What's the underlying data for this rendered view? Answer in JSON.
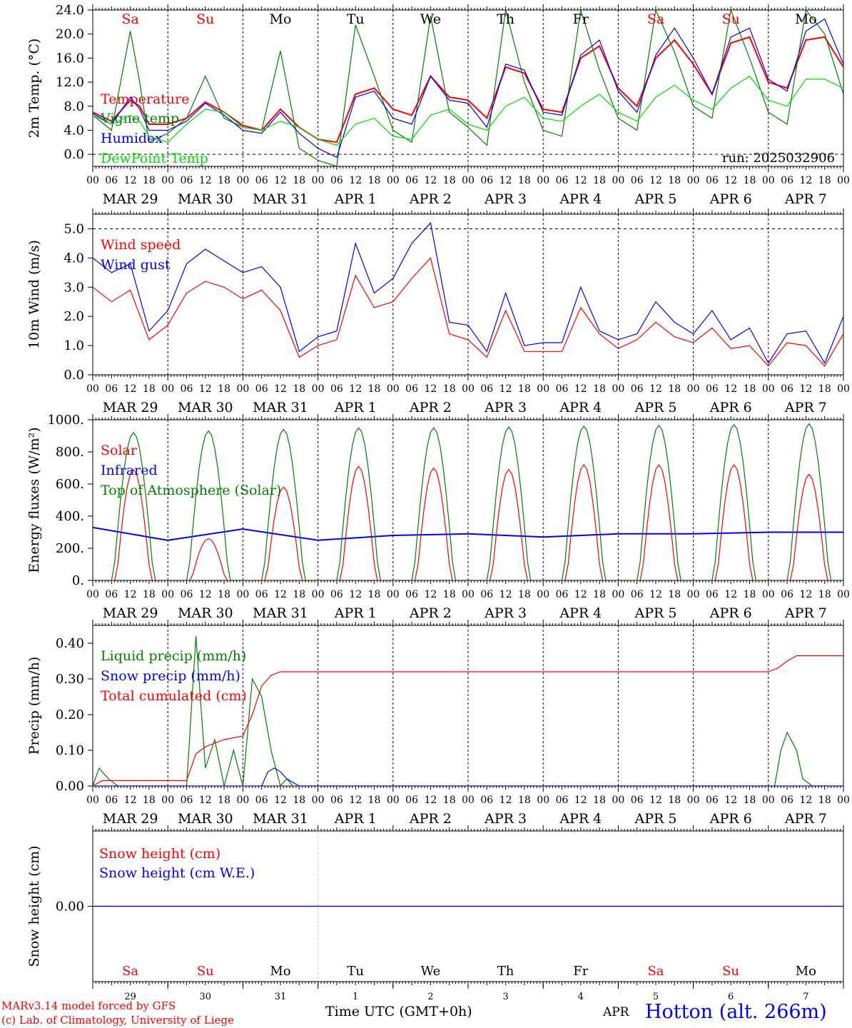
{
  "days": [
    "MAR 29",
    "MAR 30",
    "MAR 31",
    "APR  1",
    "APR  2",
    "APR  3",
    "APR  4",
    "APR  5",
    "APR  6",
    "APR  7"
  ],
  "weekdays": [
    "Sa",
    "Su",
    "Mo",
    "Tu",
    "We",
    "Th",
    "Fr",
    "Sa",
    "Su",
    "Mo"
  ],
  "weekday_colors": [
    "#ff0000",
    "#ff0000",
    "#000000",
    "#000000",
    "#000000",
    "#000000",
    "#000000",
    "#ff0000",
    "#ff0000",
    "#000000"
  ],
  "day_numbers": [
    "29",
    "30",
    "31",
    "1",
    "2",
    "3",
    "4",
    "5",
    "6",
    "7"
  ],
  "hour_ticks": [
    "00",
    "06",
    "12",
    "18"
  ],
  "last_hour_tick": "00",
  "footer": {
    "model": "MARv3.14 model forced by GFS",
    "copyright": "(c) Lab. of Climatology, University of Liege",
    "time_label": "Time UTC (GMT+0h)",
    "month": "APR",
    "station": "Hotton (alt. 266m)"
  },
  "colors": {
    "red": "#ff0000",
    "blue": "#0000ff",
    "green": "#008000",
    "lightgreen": "#00dd00"
  },
  "chart_data": [
    {
      "type": "line",
      "ylabel": "2m Temp. (°C)",
      "ylim": [
        -2,
        24
      ],
      "yticks": [
        "0.0",
        "4.0",
        "8.0",
        "12.0",
        "16.0",
        "20.0",
        "24.0"
      ],
      "ytick_values": [
        0,
        4,
        8,
        12,
        16,
        20,
        24
      ],
      "dashed_y": 0,
      "run_label": "run: 2025032906",
      "x_unit": "hours since 2025-03-29 00 UTC",
      "series": [
        {
          "name": "Temperature",
          "color": "#ff0000",
          "x": [
            0,
            6,
            12,
            15,
            18,
            24,
            30,
            36,
            42,
            48,
            54,
            60,
            66,
            72,
            78,
            84,
            90,
            96,
            102,
            108,
            114,
            120,
            126,
            132,
            138,
            144,
            150,
            156,
            162,
            168,
            174,
            180,
            186,
            192,
            198,
            204,
            210,
            216,
            222,
            228,
            234,
            240
          ],
          "y": [
            7.0,
            5.5,
            9.0,
            8.0,
            5.0,
            5.0,
            6.0,
            8.7,
            7.0,
            4.8,
            4.0,
            7.5,
            4.5,
            2.5,
            2.0,
            10.0,
            11.0,
            7.5,
            6.5,
            13.0,
            9.5,
            9.0,
            6.0,
            14.5,
            13.5,
            7.5,
            7.0,
            16.0,
            18.0,
            11.0,
            8.0,
            16.0,
            19.0,
            15.0,
            10.0,
            18.5,
            19.5,
            12.0,
            11.0,
            19.0,
            19.5,
            14.5
          ]
        },
        {
          "name": "Vigne temp",
          "color": "#008000",
          "x": [
            0,
            6,
            12,
            15,
            18,
            24,
            30,
            36,
            42,
            48,
            54,
            60,
            66,
            72,
            78,
            84,
            90,
            96,
            102,
            108,
            114,
            120,
            126,
            132,
            138,
            144,
            150,
            156,
            162,
            168,
            174,
            180,
            186,
            192,
            198,
            204,
            210,
            216,
            222,
            228,
            234,
            240
          ],
          "y": [
            6.5,
            4.0,
            20.5,
            12.0,
            2.0,
            3.5,
            6.0,
            13.0,
            6.0,
            4.5,
            4.0,
            17.2,
            1.0,
            -1.0,
            -2.0,
            21.5,
            13.0,
            4.0,
            2.0,
            23.0,
            7.0,
            4.5,
            1.5,
            24.0,
            12.0,
            4.0,
            3.0,
            24.5,
            14.0,
            6.0,
            4.0,
            25.0,
            17.0,
            8.0,
            6.0,
            25.5,
            16.0,
            7.0,
            5.0,
            25.5,
            20.0,
            10.0
          ]
        },
        {
          "name": "Humidex",
          "color": "#0000ff",
          "x": [
            0,
            6,
            12,
            15,
            18,
            24,
            30,
            36,
            42,
            48,
            54,
            60,
            66,
            72,
            78,
            84,
            90,
            96,
            102,
            108,
            114,
            120,
            126,
            132,
            138,
            144,
            150,
            156,
            162,
            168,
            174,
            180,
            186,
            192,
            198,
            204,
            210,
            216,
            222,
            228,
            234,
            240
          ],
          "y": [
            6.8,
            5.0,
            9.5,
            7.5,
            4.0,
            4.0,
            5.5,
            8.5,
            6.5,
            4.0,
            3.5,
            7.0,
            3.5,
            1.0,
            -0.5,
            9.5,
            10.5,
            6.0,
            5.0,
            13.0,
            9.0,
            8.5,
            4.5,
            15.0,
            14.0,
            7.0,
            6.5,
            16.5,
            19.0,
            10.5,
            7.0,
            16.5,
            21.0,
            16.0,
            10.0,
            19.5,
            21.0,
            12.5,
            10.5,
            20.5,
            22.5,
            15.0
          ]
        },
        {
          "name": "DewPoint Temp",
          "color": "#00dd00",
          "x": [
            0,
            6,
            12,
            15,
            18,
            24,
            30,
            36,
            42,
            48,
            54,
            60,
            66,
            72,
            78,
            84,
            90,
            96,
            102,
            108,
            114,
            120,
            126,
            132,
            138,
            144,
            150,
            156,
            162,
            168,
            174,
            180,
            186,
            192,
            198,
            204,
            210,
            216,
            222,
            228,
            234,
            240
          ],
          "y": [
            6.5,
            5.0,
            6.5,
            5.5,
            3.0,
            2.0,
            5.0,
            7.5,
            7.0,
            4.5,
            4.0,
            5.5,
            4.5,
            2.5,
            1.5,
            5.0,
            6.0,
            3.0,
            2.5,
            6.5,
            7.5,
            5.0,
            4.0,
            8.0,
            9.5,
            6.0,
            5.5,
            8.0,
            10.0,
            7.0,
            5.5,
            9.5,
            11.5,
            9.0,
            7.5,
            11.0,
            13.0,
            9.0,
            8.0,
            12.5,
            12.5,
            11.0
          ]
        }
      ]
    },
    {
      "type": "line",
      "ylabel": "10m Wind (m/s)",
      "ylim": [
        0,
        5.5
      ],
      "yticks": [
        "0.0",
        "1.0",
        "2.0",
        "3.0",
        "4.0",
        "5.0"
      ],
      "ytick_values": [
        0,
        1,
        2,
        3,
        4,
        5
      ],
      "dashed_y": 5,
      "series": [
        {
          "name": "Wind speed",
          "color": "#ff0000",
          "x": [
            0,
            6,
            12,
            18,
            24,
            30,
            36,
            42,
            48,
            54,
            60,
            66,
            72,
            78,
            84,
            90,
            96,
            102,
            108,
            114,
            120,
            126,
            132,
            138,
            144,
            150,
            156,
            162,
            168,
            174,
            180,
            186,
            192,
            198,
            204,
            210,
            216,
            222,
            228,
            234,
            240
          ],
          "y": [
            3.0,
            2.5,
            2.9,
            1.2,
            1.7,
            2.8,
            3.2,
            3.0,
            2.6,
            2.9,
            2.2,
            0.6,
            1.0,
            1.2,
            3.4,
            2.3,
            2.5,
            3.3,
            4.0,
            1.4,
            1.2,
            0.6,
            2.2,
            0.8,
            0.8,
            0.8,
            2.3,
            1.4,
            0.9,
            1.2,
            1.8,
            1.3,
            1.1,
            1.6,
            0.9,
            1.0,
            0.3,
            1.1,
            1.0,
            0.3,
            1.4
          ]
        },
        {
          "name": "Wind gust",
          "color": "#0000ff",
          "x": [
            0,
            6,
            12,
            18,
            24,
            30,
            36,
            42,
            48,
            54,
            60,
            66,
            72,
            78,
            84,
            90,
            96,
            102,
            108,
            114,
            120,
            126,
            132,
            138,
            144,
            150,
            156,
            162,
            168,
            174,
            180,
            186,
            192,
            198,
            204,
            210,
            216,
            222,
            228,
            234,
            240
          ],
          "y": [
            4.0,
            3.5,
            3.8,
            1.5,
            2.2,
            3.8,
            4.3,
            3.9,
            3.5,
            3.7,
            3.0,
            0.8,
            1.3,
            1.5,
            4.5,
            2.8,
            3.3,
            4.5,
            5.2,
            1.8,
            1.7,
            0.8,
            2.8,
            1.0,
            1.1,
            1.1,
            3.0,
            1.5,
            1.2,
            1.4,
            2.5,
            1.8,
            1.4,
            2.2,
            1.2,
            1.6,
            0.4,
            1.4,
            1.5,
            0.4,
            2.0
          ]
        }
      ]
    },
    {
      "type": "line",
      "ylabel": "Energy fluxes (W/m²)",
      "ylim": [
        0,
        1000
      ],
      "yticks": [
        "0.",
        "200.",
        "400.",
        "600.",
        "800.",
        "1000."
      ],
      "ytick_values": [
        0,
        200,
        400,
        600,
        800,
        1000
      ],
      "series": [
        {
          "name": "Solar",
          "color": "#ff0000",
          "peak_hours": [
            13,
            13,
            13,
            13,
            13,
            13,
            13,
            13,
            13,
            13
          ],
          "peaks": [
            690,
            260,
            580,
            710,
            700,
            690,
            720,
            720,
            720,
            660
          ]
        },
        {
          "name": "Infrared",
          "color": "#0000ff",
          "x": [
            0,
            24,
            48,
            72,
            96,
            120,
            144,
            168,
            192,
            216,
            240
          ],
          "y": [
            330,
            250,
            320,
            250,
            280,
            290,
            270,
            290,
            290,
            300,
            300
          ]
        },
        {
          "name": "Top of Atmosphere (Solar)",
          "color": "#008000",
          "peak_hours": [
            13,
            13,
            13,
            13,
            13,
            13,
            13,
            13,
            13,
            13
          ],
          "peaks": [
            920,
            930,
            940,
            950,
            950,
            955,
            960,
            965,
            970,
            975
          ]
        }
      ]
    },
    {
      "type": "line",
      "ylabel": "Precip (mm/h)",
      "ylim": [
        0,
        0.45
      ],
      "yticks": [
        "0.00",
        "0.10",
        "0.20",
        "0.30",
        "0.40"
      ],
      "ytick_values": [
        0,
        0.1,
        0.2,
        0.3,
        0.4
      ],
      "series": [
        {
          "name": "Liquid precip (mm/h)",
          "color": "#008000",
          "x": [
            0,
            2,
            5,
            8,
            30,
            33,
            36,
            39,
            42,
            45,
            48,
            51,
            54,
            57,
            60,
            62,
            64,
            218,
            220,
            222,
            225,
            227,
            230,
            240
          ],
          "y": [
            0,
            0.05,
            0.02,
            0,
            0,
            0.42,
            0.05,
            0.13,
            0,
            0.1,
            0,
            0.3,
            0.25,
            0.1,
            0,
            0.02,
            0,
            0,
            0.1,
            0.15,
            0.1,
            0.02,
            0,
            0
          ]
        },
        {
          "name": "Snow precip (mm/h)",
          "color": "#0000ff",
          "x": [
            0,
            54,
            56,
            58,
            60,
            62,
            66,
            240
          ],
          "y": [
            0,
            0,
            0.04,
            0.05,
            0.04,
            0.02,
            0,
            0
          ]
        },
        {
          "name": "Total cumulated (cm)",
          "color": "#ff0000",
          "x": [
            0,
            3,
            6,
            30,
            33,
            36,
            39,
            42,
            48,
            51,
            54,
            57,
            60,
            66,
            204,
            216,
            219,
            222,
            225,
            240
          ],
          "y": [
            0,
            0.015,
            0.015,
            0.015,
            0.09,
            0.11,
            0.12,
            0.13,
            0.14,
            0.2,
            0.28,
            0.31,
            0.32,
            0.32,
            0.32,
            0.32,
            0.33,
            0.35,
            0.365,
            0.365
          ]
        }
      ]
    },
    {
      "type": "line",
      "ylabel": "Snow height (cm)",
      "ylim": [
        -1,
        1
      ],
      "yticks": [
        "0.00"
      ],
      "ytick_values": [
        0
      ],
      "series": [
        {
          "name": "Snow height (cm)",
          "color": "#ff0000",
          "x": [
            0,
            240
          ],
          "y": [
            0,
            0
          ]
        },
        {
          "name": "Snow height (cm W.E.)",
          "color": "#0000ff",
          "x": [
            0,
            240
          ],
          "y": [
            0,
            0
          ]
        }
      ]
    }
  ]
}
